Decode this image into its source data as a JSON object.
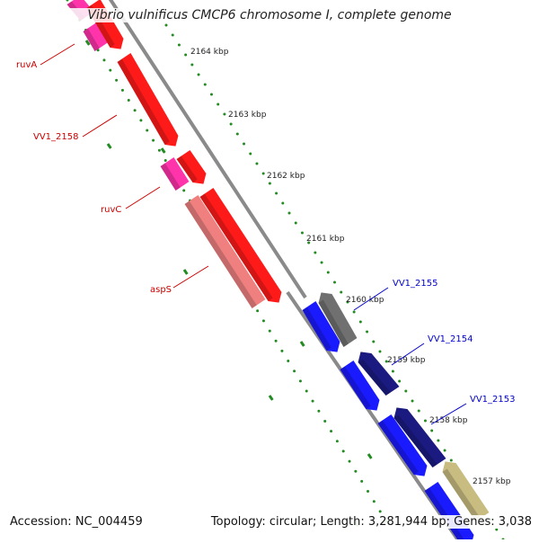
{
  "title": "Vibrio vulnificus CMCP6 chromosome I, complete genome",
  "accession": "Accession: NC_004459",
  "summary": "Topology: circular; Length: 3,281,944 bp; Genes: 3,038",
  "colors": {
    "backbone": "#8a8a8a",
    "forward_gene": "#ff1a1a",
    "forward_gene_alt": "#ff33aa",
    "forward_rna": "#f08080",
    "reverse_gene": "#1a1aff",
    "reverse_dark": "#1a1a80",
    "reverse_gray": "#707070",
    "reverse_khaki": "#c8bc80",
    "tick": "#228b22",
    "forward_label": "#cc0000",
    "reverse_label": "#0000cc"
  },
  "ticks": [
    {
      "label": "2164 kbp"
    },
    {
      "label": "2163 kbp"
    },
    {
      "label": "2162 kbp"
    },
    {
      "label": "2161 kbp"
    },
    {
      "label": "2160 kbp"
    },
    {
      "label": "2159 kbp"
    },
    {
      "label": "2158 kbp"
    },
    {
      "label": "2157 kbp"
    }
  ],
  "forward_labels": [
    {
      "name": "ruvA"
    },
    {
      "name": "VV1_2158"
    },
    {
      "name": "ruvC"
    },
    {
      "name": "aspS"
    }
  ],
  "reverse_labels": [
    {
      "name": "VV1_2155"
    },
    {
      "name": "VV1_2154"
    },
    {
      "name": "VV1_2153"
    }
  ]
}
